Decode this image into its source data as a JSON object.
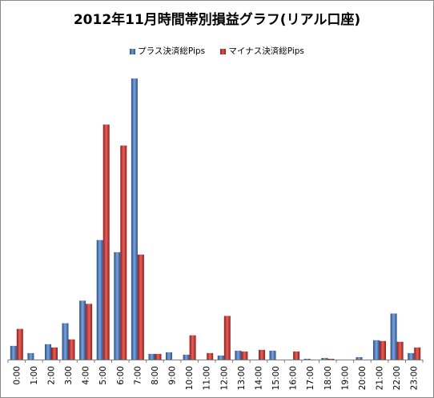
{
  "chart_data": {
    "type": "bar",
    "title": "2012年11月時間帯別損益グラフ(リアル口座)",
    "xlabel": "",
    "ylabel": "",
    "legend_position": "top",
    "grid": false,
    "categories": [
      "0:00",
      "1:00",
      "2:00",
      "3:00",
      "4:00",
      "5:00",
      "6:00",
      "7:00",
      "8:00",
      "9:00",
      "10:00",
      "11:00",
      "12:00",
      "13:00",
      "14:00",
      "15:00",
      "16:00",
      "17:00",
      "18:00",
      "19:00",
      "20:00",
      "21:00",
      "22:00",
      "23:00"
    ],
    "series": [
      {
        "name": "プラス決済総Pips",
        "color": "#4472c4",
        "values": [
          17,
          8,
          19,
          45,
          73,
          148,
          133,
          348,
          7,
          9,
          6,
          0,
          5,
          11,
          0,
          11,
          0,
          1,
          2,
          0,
          3,
          24,
          57,
          8
        ]
      },
      {
        "name": "マイナス決済総Pips",
        "color": "#c0504d",
        "values": [
          38,
          0,
          15,
          25,
          69,
          291,
          265,
          130,
          7,
          0,
          30,
          8,
          54,
          10,
          12,
          0,
          10,
          0,
          1,
          0,
          0,
          23,
          22,
          15
        ]
      }
    ],
    "ylim": [
      0,
      350
    ]
  }
}
